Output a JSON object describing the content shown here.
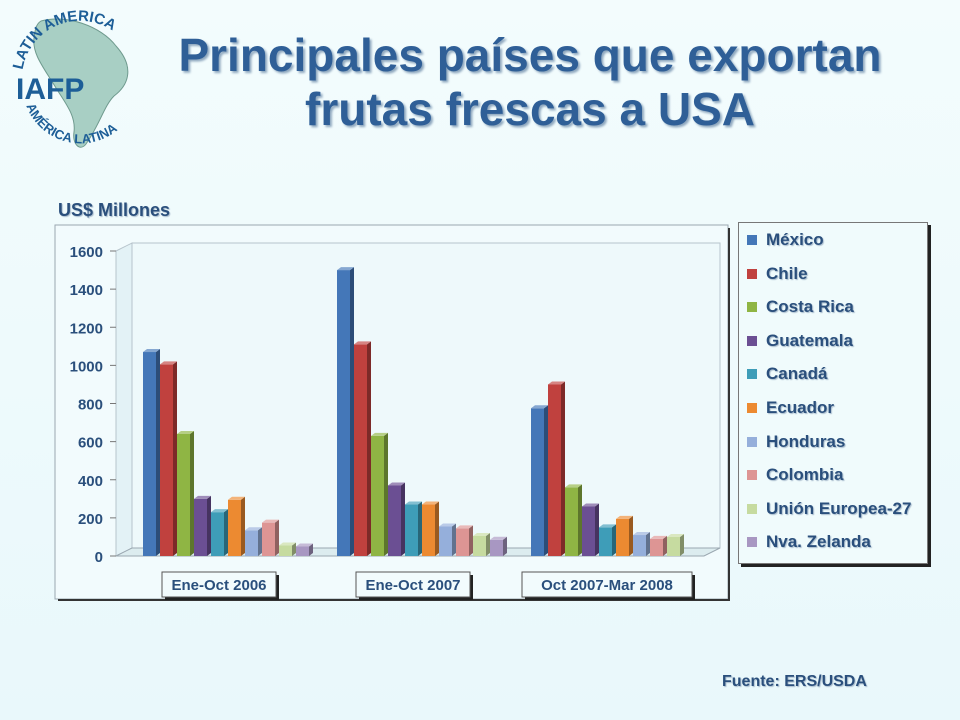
{
  "header": {
    "title_line1": "Principales países que exportan",
    "title_line2": "frutas frescas a USA"
  },
  "logo": {
    "arc_top": "LATIN AMERICA",
    "arc_bottom": "AMÉRICA LATINA",
    "initials": "IAFP"
  },
  "colors": {
    "title": "#2f5f97",
    "text": "#2a4f7c"
  },
  "footer": {
    "source": "Fuente: ERS/USDA"
  },
  "chart_data": {
    "type": "bar",
    "ylabel": "US$ Millones",
    "ylim": [
      0,
      1600
    ],
    "yticks": [
      "0",
      "200",
      "400",
      "600",
      "800",
      "1000",
      "1200",
      "1400",
      "1600"
    ],
    "categories": [
      "Ene-Oct 2006",
      "Ene-Oct 2007",
      "Oct 2007-Mar 2008"
    ],
    "legend_position": "right",
    "grid": false,
    "series": [
      {
        "name": "México",
        "color": "#4477b8",
        "values": [
          1070,
          1500,
          775
        ]
      },
      {
        "name": "Chile",
        "color": "#c0413e",
        "values": [
          1005,
          1110,
          900
        ]
      },
      {
        "name": "Costa Rica",
        "color": "#8fb544",
        "values": [
          640,
          630,
          360
        ]
      },
      {
        "name": "Guatemala",
        "color": "#6b4f93",
        "values": [
          300,
          370,
          260
        ]
      },
      {
        "name": "Canadá",
        "color": "#3e9db8",
        "values": [
          230,
          270,
          150
        ]
      },
      {
        "name": "Ecuador",
        "color": "#ec8a31",
        "values": [
          295,
          270,
          195
        ]
      },
      {
        "name": "Honduras",
        "color": "#95afdb",
        "values": [
          135,
          155,
          110
        ]
      },
      {
        "name": "Colombia",
        "color": "#dd9594",
        "values": [
          175,
          145,
          90
        ]
      },
      {
        "name": "Unión Europea-27",
        "color": "#c6dba0",
        "values": [
          55,
          105,
          100
        ]
      },
      {
        "name": "Nva. Zelanda",
        "color": "#a897c2",
        "values": [
          50,
          85,
          0
        ]
      }
    ]
  }
}
